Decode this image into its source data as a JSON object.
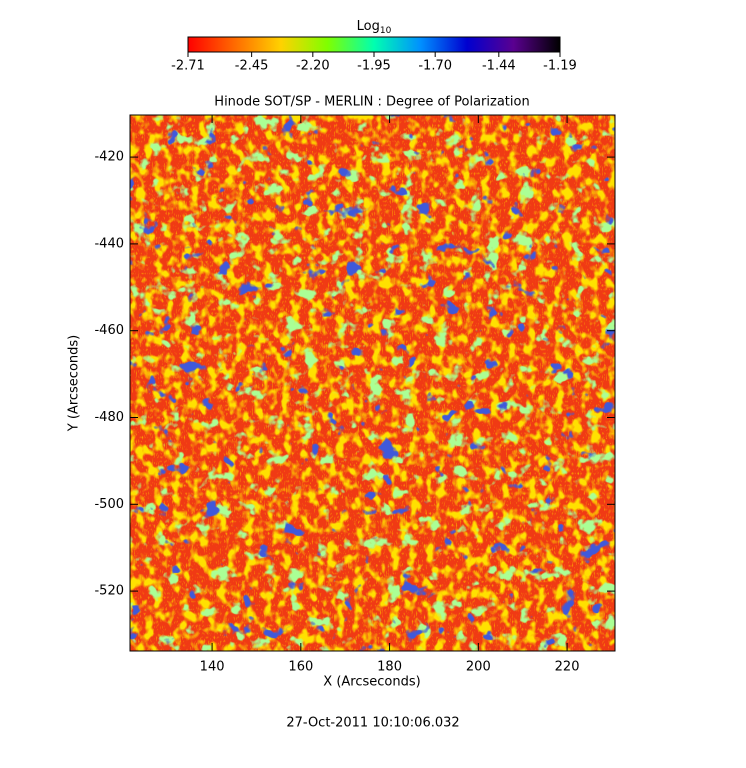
{
  "chart_data": {
    "type": "heatmap",
    "title": "Hinode SOT/SP - MERLIN : Degree of Polarization",
    "xlabel": "X (Arcseconds)",
    "ylabel": "Y (Arcseconds)",
    "annotation": "27-Oct-2011 10:10:06.032",
    "colorbar_label": {
      "text": "Log",
      "subscript": "10"
    },
    "colorscale": [
      "#ff0000",
      "#ff6a00",
      "#ffd200",
      "#7fff00",
      "#00ffb0",
      "#0090ff",
      "#0000d0",
      "#5a0090",
      "#000000"
    ],
    "clim": [
      -2.71,
      -1.19
    ],
    "cticks": [
      -2.71,
      -2.45,
      {
        "value": -2.2,
        "label": "-2.20"
      },
      -1.95,
      {
        "value": -1.7,
        "label": "-1.70"
      },
      -1.44,
      -1.19
    ],
    "xlim": [
      121.5,
      230.8
    ],
    "xticks": [
      140,
      160,
      180,
      200,
      220
    ],
    "ylim": [
      -533.8,
      -410.3
    ],
    "yticks": [
      -420,
      -440,
      -460,
      -480,
      -500,
      -520
    ]
  }
}
